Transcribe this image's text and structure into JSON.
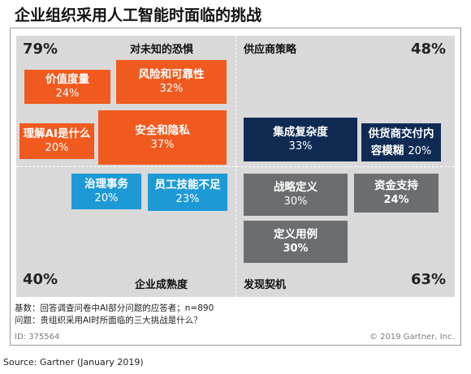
{
  "title": "企业组织采用人工智能时面临的挑战",
  "chart_data": {
    "type": "table",
    "quadrants": [
      {
        "label": "对未知的恐惧",
        "percent": "79%",
        "items": [
          {
            "label": "价值度量",
            "value": "24%"
          },
          {
            "label": "风险和可靠性",
            "value": "32%"
          },
          {
            "label": "理解AI是什么",
            "value": "20%"
          },
          {
            "label": "安全和隐私",
            "value": "37%"
          }
        ]
      },
      {
        "label": "供应商策略",
        "percent": "48%",
        "items": [
          {
            "label": "集成复杂度",
            "value": "33%"
          },
          {
            "label": "供货商交付内容模糊",
            "value": "20%"
          }
        ]
      },
      {
        "label": "企业成熟度",
        "percent": "40%",
        "items": [
          {
            "label": "治理事务",
            "value": "20%"
          },
          {
            "label": "员工技能不足",
            "value": "23%"
          }
        ]
      },
      {
        "label": "发现契机",
        "percent": "63%",
        "items": [
          {
            "label": "战略定义",
            "value": "30%"
          },
          {
            "label": "资金支持",
            "value": "24%"
          },
          {
            "label": "定义用例",
            "value": "30%"
          }
        ]
      }
    ]
  },
  "display": {
    "q_tl_label": "对未知的恐惧",
    "q_tl_pct": "79%",
    "q_tr_label": "供应商策略",
    "q_tr_pct": "48%",
    "q_bl_label": "企业成熟度",
    "q_bl_pct": "40%",
    "q_br_label": "发现契机",
    "q_br_pct": "63%",
    "b_value_label": "价值度量",
    "b_value_val": "24%",
    "b_risk_label": "风险和可靠性",
    "b_risk_val": "32%",
    "b_ai_label": "理解AI是什么",
    "b_ai_val": "20%",
    "b_sec_label": "安全和隐私",
    "b_sec_val": "37%",
    "b_int_label": "集成复杂度",
    "b_int_val": "33%",
    "b_vend_label1": "供货商交付内",
    "b_vend_label2": "容模糊",
    "b_vend_val": "20%",
    "b_gov_label": "治理事务",
    "b_gov_val": "20%",
    "b_skill_label": "员工技能不足",
    "b_skill_val": "23%",
    "b_strat_label": "战略定义",
    "b_strat_val": "30%",
    "b_fund_label": "资金支持",
    "b_fund_val": "24%",
    "b_use_label": "定义用例",
    "b_use_val": "30%"
  },
  "notes": {
    "base": "基数：回答调查问卷中AI部分问题的应答者；n=890",
    "question": "问题：贵组织采用AI时所面临的三大挑战是什么？",
    "id": "ID: 375564",
    "copyright": "© 2019 Gartner, Inc."
  },
  "source": "Source: Gartner (January 2019)",
  "colors": {
    "orange": "#f05a1e",
    "blue": "#1d9ad6",
    "navy": "#0f2b54",
    "gray": "#6b6e70",
    "background": "#d9d9d9"
  }
}
